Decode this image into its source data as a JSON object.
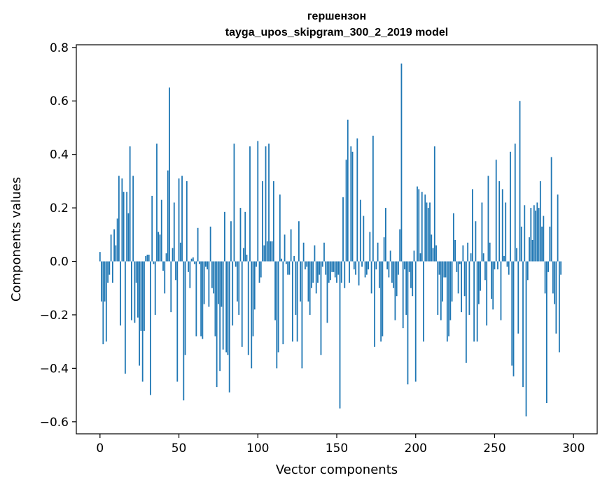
{
  "chart_data": {
    "type": "bar",
    "title_line1": "гершензон",
    "title_line2": "tayga_upos_skipgram_300_2_2019 model",
    "xlabel": "Vector components",
    "ylabel": "Components values",
    "xlim": [
      -15,
      315
    ],
    "ylim": [
      -0.645,
      0.81
    ],
    "x_ticks": [
      0,
      50,
      100,
      150,
      200,
      250,
      300
    ],
    "x_tick_labels": [
      "0",
      "50",
      "100",
      "150",
      "200",
      "250",
      "300"
    ],
    "y_ticks": [
      -0.6,
      -0.4,
      -0.2,
      0.0,
      0.2,
      0.4,
      0.6,
      0.8
    ],
    "y_tick_labels": [
      "−0.6",
      "−0.4",
      "−0.2",
      "0.0",
      "0.2",
      "0.4",
      "0.6",
      "0.8"
    ],
    "bar_color": "#1f77b4",
    "values": [
      0.035,
      -0.15,
      -0.31,
      -0.15,
      -0.3,
      -0.08,
      -0.05,
      0.1,
      -0.08,
      0.12,
      0.06,
      0.16,
      0.32,
      -0.24,
      0.31,
      0.26,
      -0.42,
      0.26,
      0.18,
      0.43,
      -0.22,
      0.32,
      -0.23,
      -0.08,
      -0.21,
      -0.39,
      -0.26,
      -0.45,
      -0.26,
      0.02,
      0.025,
      0.025,
      -0.5,
      0.245,
      -0.01,
      -0.2,
      0.44,
      0.11,
      0.1,
      0.23,
      -0.035,
      -0.12,
      0.03,
      0.34,
      0.65,
      -0.19,
      0.05,
      0.22,
      -0.07,
      -0.45,
      0.31,
      0.07,
      0.32,
      -0.52,
      -0.35,
      0.3,
      -0.04,
      -0.1,
      0.01,
      0.015,
      -0.01,
      -0.28,
      0.125,
      -0.01,
      -0.28,
      -0.29,
      -0.16,
      -0.02,
      -0.03,
      -0.17,
      0.13,
      -0.1,
      -0.12,
      -0.28,
      -0.47,
      -0.16,
      -0.41,
      -0.17,
      -0.33,
      0.185,
      -0.34,
      -0.35,
      -0.49,
      0.15,
      -0.24,
      0.44,
      -0.02,
      -0.15,
      -0.2,
      0.2,
      -0.32,
      0.05,
      0.185,
      0.025,
      -0.35,
      0.43,
      -0.4,
      -0.28,
      -0.18,
      -0.02,
      0.45,
      -0.08,
      -0.06,
      0.3,
      0.06,
      0.43,
      0.075,
      0.44,
      0.075,
      0.075,
      0.3,
      -0.22,
      -0.4,
      -0.34,
      0.25,
      0.01,
      -0.31,
      0.1,
      -0.01,
      -0.05,
      -0.05,
      0.12,
      -0.3,
      0.02,
      -0.2,
      -0.3,
      0.15,
      -0.15,
      -0.4,
      0.07,
      -0.03,
      -0.02,
      -0.15,
      -0.2,
      -0.1,
      -0.08,
      0.06,
      -0.12,
      -0.08,
      -0.05,
      -0.35,
      -0.02,
      0.07,
      -0.05,
      -0.23,
      -0.08,
      -0.07,
      -0.04,
      -0.04,
      -0.06,
      -0.08,
      -0.05,
      -0.55,
      -0.08,
      0.24,
      -0.1,
      0.38,
      0.53,
      -0.08,
      0.43,
      0.41,
      -0.03,
      -0.05,
      0.46,
      -0.09,
      0.23,
      -0.02,
      0.17,
      -0.06,
      -0.05,
      -0.03,
      0.11,
      -0.12,
      0.47,
      -0.32,
      -0.03,
      0.07,
      -0.1,
      -0.3,
      -0.28,
      0.09,
      0.2,
      -0.03,
      -0.06,
      0.04,
      -0.08,
      -0.1,
      -0.22,
      -0.13,
      -0.05,
      0.12,
      0.74,
      -0.25,
      -0.03,
      -0.2,
      -0.46,
      -0.04,
      -0.1,
      -0.13,
      0.04,
      -0.45,
      0.28,
      0.27,
      0.03,
      0.26,
      -0.3,
      0.25,
      0.22,
      0.2,
      0.22,
      0.1,
      0.05,
      0.43,
      0.06,
      -0.2,
      -0.05,
      -0.22,
      -0.15,
      -0.06,
      -0.06,
      -0.3,
      -0.28,
      -0.22,
      -0.15,
      0.18,
      0.08,
      -0.04,
      -0.12,
      -0.01,
      -0.19,
      0.06,
      -0.13,
      -0.38,
      0.07,
      -0.2,
      0.03,
      0.27,
      -0.3,
      0.15,
      -0.3,
      -0.16,
      -0.11,
      0.22,
      0.03,
      -0.07,
      -0.24,
      0.32,
      0.07,
      -0.14,
      -0.18,
      -0.03,
      0.38,
      -0.03,
      0.3,
      -0.22,
      0.27,
      0.02,
      0.22,
      -0.02,
      -0.05,
      0.41,
      -0.39,
      -0.43,
      0.44,
      0.05,
      -0.27,
      0.6,
      0.13,
      -0.47,
      0.21,
      -0.58,
      -0.07,
      0.09,
      0.2,
      0.08,
      0.21,
      0.19,
      0.22,
      0.2,
      0.3,
      0.13,
      0.17,
      -0.12,
      -0.53,
      -0.04,
      0.13,
      0.39,
      -0.12,
      -0.16,
      -0.27,
      0.25,
      -0.34,
      -0.05
    ]
  }
}
